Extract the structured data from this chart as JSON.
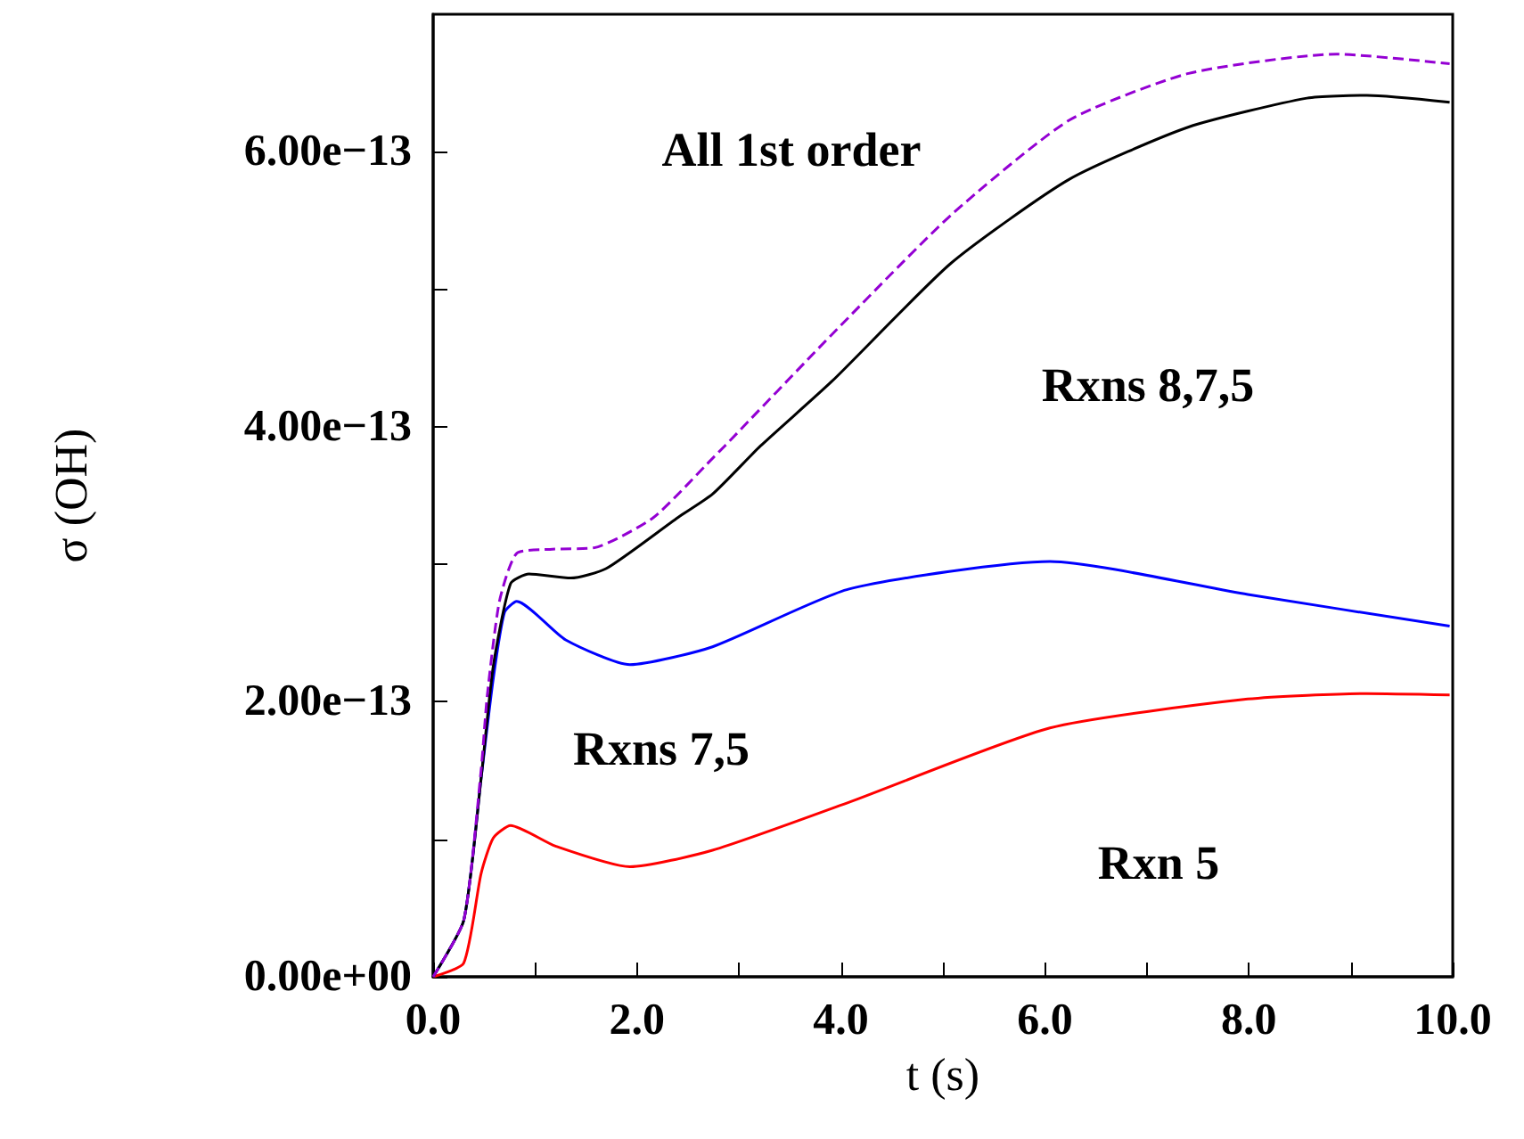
{
  "chart_data": {
    "type": "line",
    "xlabel": "t (s)",
    "ylabel": "σ (OH)",
    "marker": "none",
    "grid": false,
    "xlim": [
      0,
      10
    ],
    "ylim": [
      0,
      7e-13
    ],
    "xticks": [
      {
        "value": 0,
        "label": "0.0"
      },
      {
        "value": 1,
        "label": null
      },
      {
        "value": 2,
        "label": "2.0"
      },
      {
        "value": 3,
        "label": null
      },
      {
        "value": 4,
        "label": "4.0"
      },
      {
        "value": 5,
        "label": null
      },
      {
        "value": 6,
        "label": "6.0"
      },
      {
        "value": 7,
        "label": null
      },
      {
        "value": 8,
        "label": "8.0"
      },
      {
        "value": 9,
        "label": null
      },
      {
        "value": 10,
        "label": "10.0"
      }
    ],
    "yticks": [
      {
        "value": 0,
        "label": "0.00e+00"
      },
      {
        "value": 1e-13,
        "label": null
      },
      {
        "value": 2e-13,
        "label": "2.00e−13"
      },
      {
        "value": 3e-13,
        "label": null
      },
      {
        "value": 4e-13,
        "label": "4.00e−13"
      },
      {
        "value": 5e-13,
        "label": null
      },
      {
        "value": 6e-13,
        "label": "6.00e−13"
      }
    ],
    "series": [
      {
        "color": "#ff0000",
        "line_style": "solid",
        "x": [
          0,
          0.3,
          0.47,
          0.59,
          0.76,
          1.2,
          1.93,
          2.74,
          4.08,
          6.05,
          7.99,
          9.16,
          9.97
        ],
        "values": [
          0,
          1e-14,
          7.5e-14,
          1.01e-13,
          1.1e-13,
          9.5e-14,
          8e-14,
          9.2e-14,
          1.27e-13,
          1.81e-13,
          2.02e-13,
          2.06e-13,
          2.05e-13
        ]
      },
      {
        "color": "#0000ff",
        "line_style": "solid",
        "x": [
          0,
          0.3,
          0.47,
          0.59,
          0.7,
          0.82,
          1.3,
          1.93,
          2.74,
          4.08,
          6.05,
          7.99,
          9.97
        ],
        "values": [
          0,
          4.1e-14,
          1.44e-13,
          2.17e-13,
          2.65e-13,
          2.73e-13,
          2.45e-13,
          2.27e-13,
          2.4e-13,
          2.82e-13,
          3.02e-13,
          2.78e-13,
          2.55e-13
        ]
      },
      {
        "color": "#000000",
        "line_style": "solid",
        "x": [
          0,
          0.3,
          0.47,
          0.59,
          0.76,
          0.94,
          1.35,
          1.7,
          2.4,
          2.74,
          3.21,
          3.91,
          5.08,
          6.24,
          7.41,
          8.57,
          9.16,
          9.97
        ],
        "values": [
          0,
          4.1e-14,
          1.44e-13,
          2.26e-13,
          2.86e-13,
          2.93e-13,
          2.9e-13,
          2.97e-13,
          3.34e-13,
          3.51e-13,
          3.86e-13,
          4.33e-13,
          5.19e-13,
          5.8e-13,
          6.18e-13,
          6.39e-13,
          6.41e-13,
          6.36e-13
        ]
      },
      {
        "color": "#9400d3",
        "line_style": "dashed",
        "x": [
          0,
          0.3,
          0.47,
          0.53,
          0.65,
          0.82,
          1.17,
          1.58,
          2.16,
          2.74,
          2.86,
          3.91,
          5.08,
          6.24,
          7.41,
          8.86,
          9.97
        ],
        "values": [
          0,
          4.1e-14,
          1.5e-13,
          2.04e-13,
          2.73e-13,
          3.08e-13,
          3.11e-13,
          3.12e-13,
          3.34e-13,
          3.77e-13,
          3.86e-13,
          4.67e-13,
          5.54e-13,
          6.23e-13,
          6.57e-13,
          6.71e-13,
          6.64e-13
        ]
      }
    ],
    "annotations": [
      "All 1st order",
      "Rxns 8,7,5",
      "Rxns 7,5",
      "Rxn 5"
    ]
  }
}
